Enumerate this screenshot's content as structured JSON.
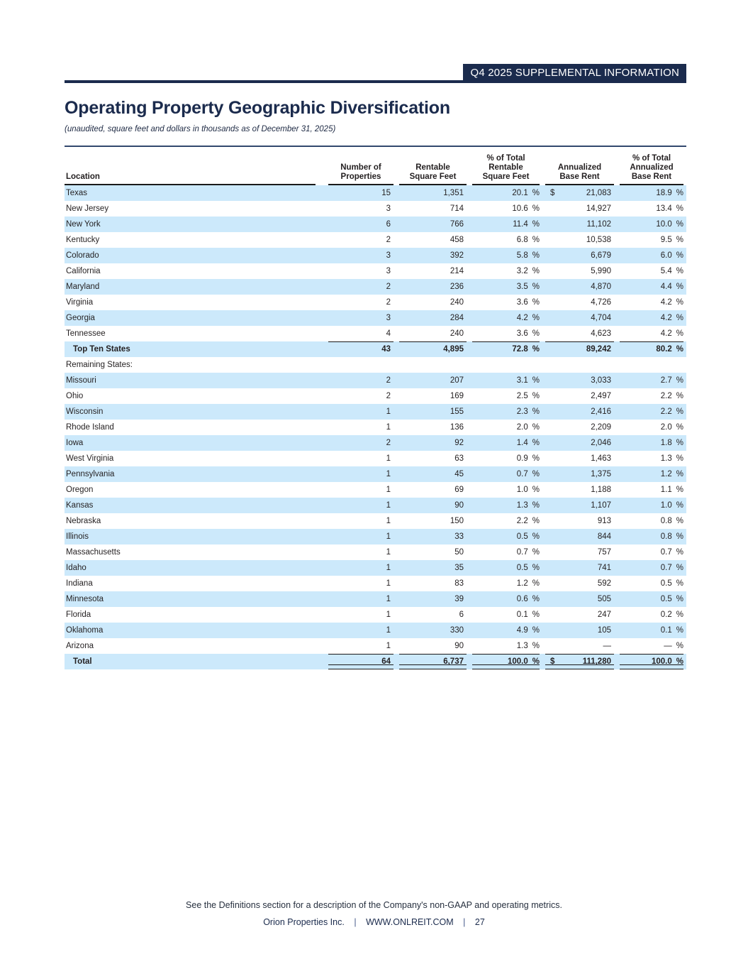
{
  "banner": {
    "tag": "Q4 2025 SUPPLEMENTAL INFORMATION"
  },
  "title": "Operating Property Geographic Diversification",
  "subtitle": "(unaudited, square feet and dollars in thousands as of December 31, 2025)",
  "symbols": {
    "percent": "%",
    "dollar": "$",
    "dash": "—"
  },
  "colors": {
    "navy": "#1b2b4d",
    "row_highlight": "#cce9fb",
    "rule": "#1a1a1a"
  },
  "table": {
    "columns": [
      {
        "id": "location",
        "lines": [
          "Location"
        ]
      },
      {
        "id": "properties",
        "lines": [
          "Number of",
          "Properties"
        ]
      },
      {
        "id": "sqft",
        "lines": [
          "Rentable",
          "Square Feet"
        ]
      },
      {
        "id": "pct_sqft",
        "lines": [
          "% of Total",
          "Rentable",
          "Square Feet"
        ]
      },
      {
        "id": "abr",
        "lines": [
          "Annualized",
          "Base Rent"
        ]
      },
      {
        "id": "pct_abr",
        "lines": [
          "% of Total",
          "Annualized",
          "Base Rent"
        ]
      }
    ],
    "rows": [
      {
        "location": "Texas",
        "properties": "15",
        "sqft": "1,351",
        "pct_sqft": "20.1",
        "abr": "21,083",
        "pct_abr": "18.9",
        "shade": true,
        "dollar": true
      },
      {
        "location": "New Jersey",
        "properties": "3",
        "sqft": "714",
        "pct_sqft": "10.6",
        "abr": "14,927",
        "pct_abr": "13.4"
      },
      {
        "location": "New York",
        "properties": "6",
        "sqft": "766",
        "pct_sqft": "11.4",
        "abr": "11,102",
        "pct_abr": "10.0",
        "shade": true
      },
      {
        "location": "Kentucky",
        "properties": "2",
        "sqft": "458",
        "pct_sqft": "6.8",
        "abr": "10,538",
        "pct_abr": "9.5"
      },
      {
        "location": "Colorado",
        "properties": "3",
        "sqft": "392",
        "pct_sqft": "5.8",
        "abr": "6,679",
        "pct_abr": "6.0",
        "shade": true
      },
      {
        "location": "California",
        "properties": "3",
        "sqft": "214",
        "pct_sqft": "3.2",
        "abr": "5,990",
        "pct_abr": "5.4"
      },
      {
        "location": "Maryland",
        "properties": "2",
        "sqft": "236",
        "pct_sqft": "3.5",
        "abr": "4,870",
        "pct_abr": "4.4",
        "shade": true
      },
      {
        "location": "Virginia",
        "properties": "2",
        "sqft": "240",
        "pct_sqft": "3.6",
        "abr": "4,726",
        "pct_abr": "4.2"
      },
      {
        "location": "Georgia",
        "properties": "3",
        "sqft": "284",
        "pct_sqft": "4.2",
        "abr": "4,704",
        "pct_abr": "4.2",
        "shade": true
      },
      {
        "location": "Tennessee",
        "properties": "4",
        "sqft": "240",
        "pct_sqft": "3.6",
        "abr": "4,623",
        "pct_abr": "4.2"
      },
      {
        "location": "Top Ten States",
        "properties": "43",
        "sqft": "4,895",
        "pct_sqft": "72.8",
        "abr": "89,242",
        "pct_abr": "80.2",
        "shade": true,
        "bold": true,
        "indent": true,
        "rule_top": true
      },
      {
        "location": "Remaining States:",
        "label_only": true
      },
      {
        "location": "Missouri",
        "properties": "2",
        "sqft": "207",
        "pct_sqft": "3.1",
        "abr": "3,033",
        "pct_abr": "2.7",
        "shade": true
      },
      {
        "location": "Ohio",
        "properties": "2",
        "sqft": "169",
        "pct_sqft": "2.5",
        "abr": "2,497",
        "pct_abr": "2.2"
      },
      {
        "location": "Wisconsin",
        "properties": "1",
        "sqft": "155",
        "pct_sqft": "2.3",
        "abr": "2,416",
        "pct_abr": "2.2",
        "shade": true
      },
      {
        "location": "Rhode Island",
        "properties": "1",
        "sqft": "136",
        "pct_sqft": "2.0",
        "abr": "2,209",
        "pct_abr": "2.0"
      },
      {
        "location": "Iowa",
        "properties": "2",
        "sqft": "92",
        "pct_sqft": "1.4",
        "abr": "2,046",
        "pct_abr": "1.8",
        "shade": true
      },
      {
        "location": "West Virginia",
        "properties": "1",
        "sqft": "63",
        "pct_sqft": "0.9",
        "abr": "1,463",
        "pct_abr": "1.3"
      },
      {
        "location": "Pennsylvania",
        "properties": "1",
        "sqft": "45",
        "pct_sqft": "0.7",
        "abr": "1,375",
        "pct_abr": "1.2",
        "shade": true
      },
      {
        "location": "Oregon",
        "properties": "1",
        "sqft": "69",
        "pct_sqft": "1.0",
        "abr": "1,188",
        "pct_abr": "1.1"
      },
      {
        "location": "Kansas",
        "properties": "1",
        "sqft": "90",
        "pct_sqft": "1.3",
        "abr": "1,107",
        "pct_abr": "1.0",
        "shade": true
      },
      {
        "location": "Nebraska",
        "properties": "1",
        "sqft": "150",
        "pct_sqft": "2.2",
        "abr": "913",
        "pct_abr": "0.8"
      },
      {
        "location": "Illinois",
        "properties": "1",
        "sqft": "33",
        "pct_sqft": "0.5",
        "abr": "844",
        "pct_abr": "0.8",
        "shade": true
      },
      {
        "location": "Massachusetts",
        "properties": "1",
        "sqft": "50",
        "pct_sqft": "0.7",
        "abr": "757",
        "pct_abr": "0.7"
      },
      {
        "location": "Idaho",
        "properties": "1",
        "sqft": "35",
        "pct_sqft": "0.5",
        "abr": "741",
        "pct_abr": "0.7",
        "shade": true
      },
      {
        "location": "Indiana",
        "properties": "1",
        "sqft": "83",
        "pct_sqft": "1.2",
        "abr": "592",
        "pct_abr": "0.5"
      },
      {
        "location": "Minnesota",
        "properties": "1",
        "sqft": "39",
        "pct_sqft": "0.6",
        "abr": "505",
        "pct_abr": "0.5",
        "shade": true
      },
      {
        "location": "Florida",
        "properties": "1",
        "sqft": "6",
        "pct_sqft": "0.1",
        "abr": "247",
        "pct_abr": "0.2"
      },
      {
        "location": "Oklahoma",
        "properties": "1",
        "sqft": "330",
        "pct_sqft": "4.9",
        "abr": "105",
        "pct_abr": "0.1",
        "shade": true
      },
      {
        "location": "Arizona",
        "properties": "1",
        "sqft": "90",
        "pct_sqft": "1.3",
        "abr": "—",
        "pct_abr": "—",
        "no_dollar_dash": true
      },
      {
        "location": "Total",
        "properties": "64",
        "sqft": "6,737",
        "pct_sqft": "100.0",
        "abr": "111,280",
        "pct_abr": "100.0",
        "shade": true,
        "bold": true,
        "indent": true,
        "dollar": true,
        "rule_top": true,
        "rule_bottom_double": true
      }
    ]
  },
  "footer": {
    "note": "See the Definitions section for a description of the Company's non-GAAP and operating metrics.",
    "company": "Orion Properties Inc.",
    "separator": "|",
    "website": "WWW.ONLREIT.COM",
    "page_number": "27"
  }
}
